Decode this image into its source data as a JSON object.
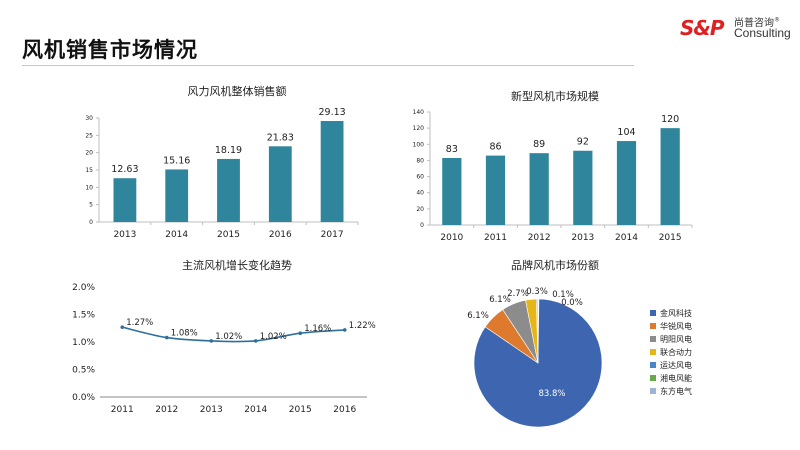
{
  "page": {
    "title": "风机销售市场情况"
  },
  "logo": {
    "mark": "S&P",
    "cn": "尚普咨询",
    "en": "Consulting",
    "reg": "®"
  },
  "colors": {
    "bar": "#2e859c",
    "line": "#2e6f9e",
    "axis": "#bfbfbf"
  },
  "chart_data": [
    {
      "type": "bar",
      "title": "风力风机整体销售额",
      "categories": [
        "2013",
        "2014",
        "2015",
        "2016",
        "2017"
      ],
      "values": [
        12.63,
        15.16,
        18.19,
        21.83,
        29.13
      ],
      "value_labels": [
        "12.63",
        "15.16",
        "18.19",
        "21.83",
        "29.13"
      ],
      "ylim": [
        0,
        30
      ],
      "yticks": [
        "0",
        "5",
        "10",
        "15",
        "20",
        "25",
        "30"
      ],
      "xlabel": "",
      "ylabel": ""
    },
    {
      "type": "bar",
      "title": "新型风机市场规模",
      "categories": [
        "2010",
        "2011",
        "2012",
        "2013",
        "2014",
        "2015"
      ],
      "values": [
        83,
        86,
        89,
        92,
        104,
        120
      ],
      "value_labels": [
        "83",
        "86",
        "89",
        "92",
        "104",
        "120"
      ],
      "ylim": [
        0,
        140
      ],
      "yticks": [
        "0",
        "20",
        "40",
        "60",
        "80",
        "100",
        "120",
        "140"
      ],
      "xlabel": "",
      "ylabel": ""
    },
    {
      "type": "line",
      "title": "主流风机增长变化趋势",
      "categories": [
        "2011",
        "2012",
        "2013",
        "2014",
        "2015",
        "2016"
      ],
      "values": [
        1.27,
        1.08,
        1.02,
        1.02,
        1.16,
        1.22
      ],
      "value_labels": [
        "1.27%",
        "1.08%",
        "1.02%",
        "1.02%",
        "1.16%",
        "1.22%"
      ],
      "ylim": [
        0,
        2.0
      ],
      "yticks": [
        "0.0%",
        "0.5%",
        "1.0%",
        "1.5%",
        "2.0%"
      ],
      "xlabel": "",
      "ylabel": ""
    },
    {
      "type": "pie",
      "title": "品牌风机市场份额",
      "labels": [
        "金风科技",
        "华锐风电",
        "明阳风电",
        "联合动力",
        "运达风电",
        "湘电风能",
        "东方电气"
      ],
      "values": [
        83.8,
        6.1,
        6.1,
        2.7,
        0.3,
        0.1,
        0.0
      ],
      "value_labels": [
        "83.8%",
        "6.1%",
        "6.1%",
        "2.7%",
        "0.3%",
        "0.1%",
        "0.0%"
      ],
      "colors": [
        "#3e66b0",
        "#dd7a2e",
        "#8c8c8c",
        "#e6b517",
        "#4a86c5",
        "#6aaa46",
        "#9db4d8"
      ],
      "legend": "right"
    }
  ]
}
